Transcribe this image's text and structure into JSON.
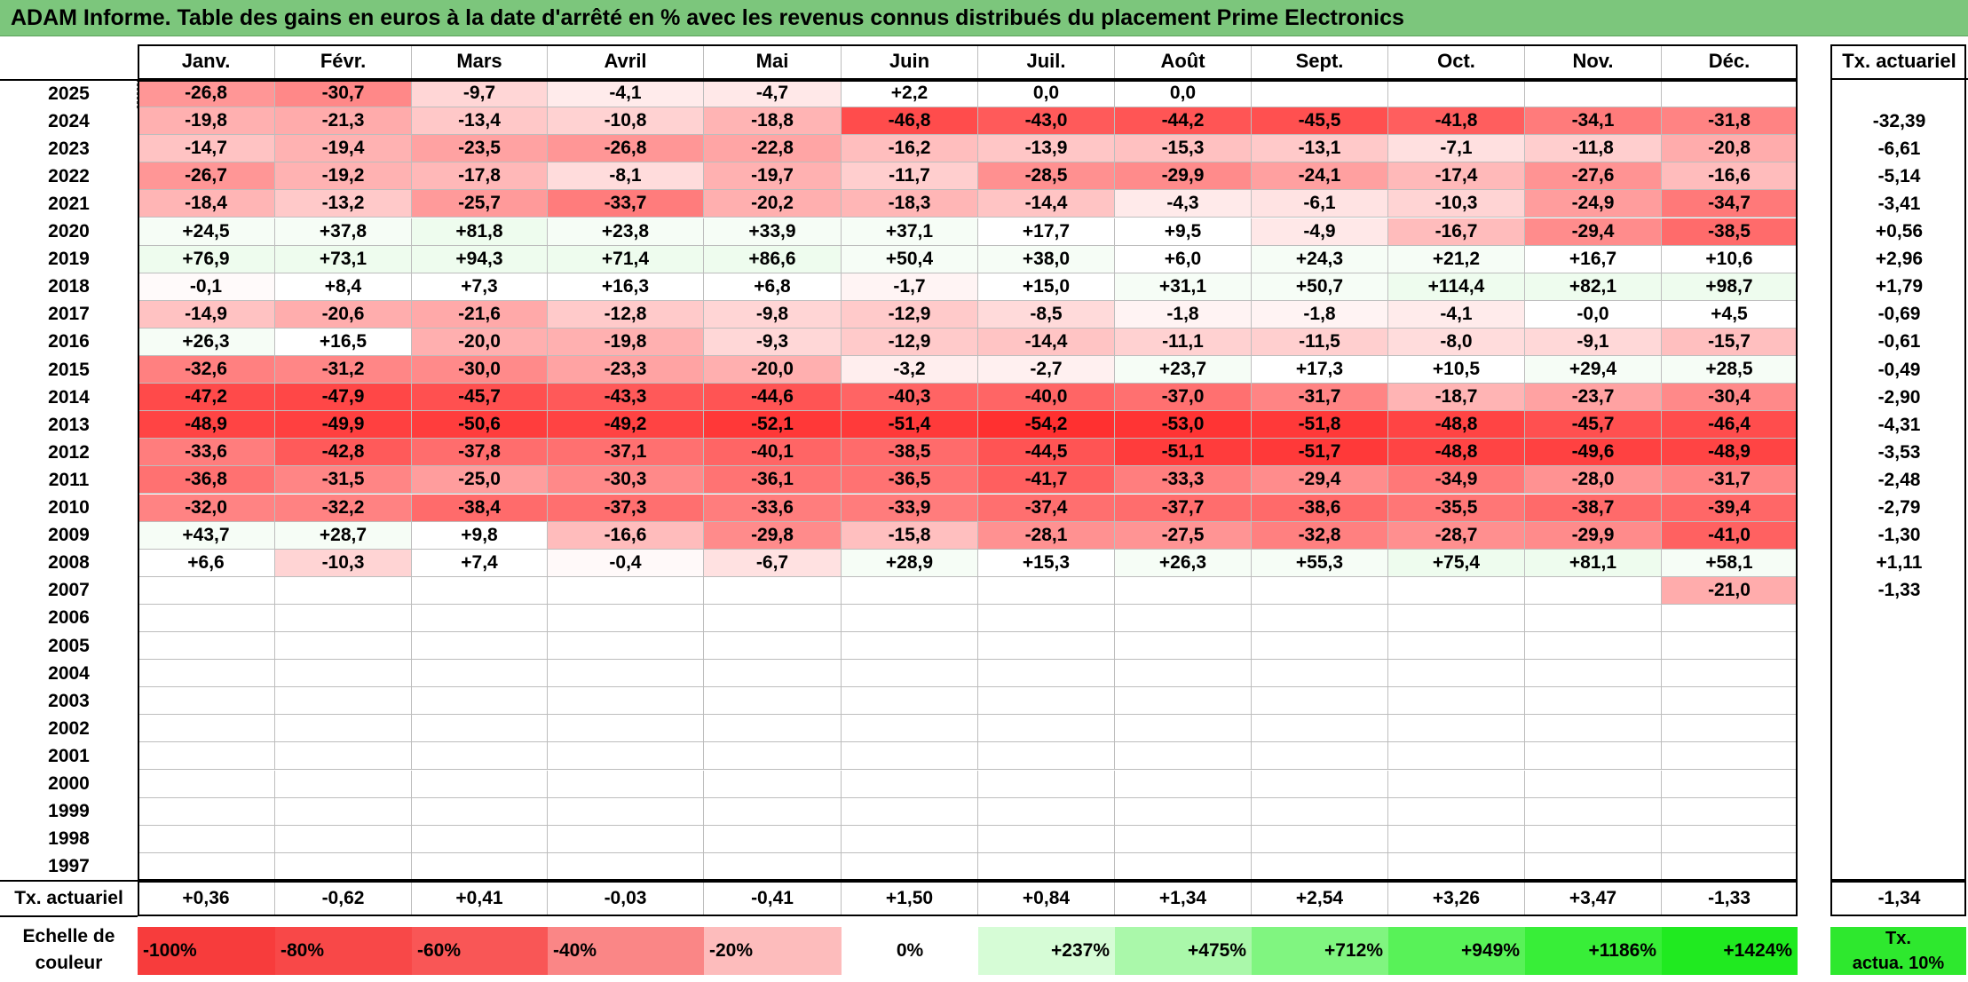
{
  "title": "ADAM Informe. Table des gains en euros à la date d'arrêté en % avec les revenus connus distribués du placement Prime Electronics",
  "months": [
    "Janv.",
    "Févr.",
    "Mars",
    "Avril",
    "Mai",
    "Juin",
    "Juil.",
    "Août",
    "Sept.",
    "Oct.",
    "Nov.",
    "Déc."
  ],
  "rate_header": "Tx. actuariel",
  "rows": [
    {
      "year": "2025",
      "values": [
        "-26,8",
        "-30,7",
        "-9,7",
        "-4,1",
        "-4,7",
        "+2,2",
        "0,0",
        "0,0",
        "",
        "",
        "",
        ""
      ],
      "rate": ""
    },
    {
      "year": "2024",
      "values": [
        "-19,8",
        "-21,3",
        "-13,4",
        "-10,8",
        "-18,8",
        "-46,8",
        "-43,0",
        "-44,2",
        "-45,5",
        "-41,8",
        "-34,1",
        "-31,8"
      ],
      "rate": "-32,39"
    },
    {
      "year": "2023",
      "values": [
        "-14,7",
        "-19,4",
        "-23,5",
        "-26,8",
        "-22,8",
        "-16,2",
        "-13,9",
        "-15,3",
        "-13,1",
        "-7,1",
        "-11,8",
        "-20,8"
      ],
      "rate": "-6,61"
    },
    {
      "year": "2022",
      "values": [
        "-26,7",
        "-19,2",
        "-17,8",
        "-8,1",
        "-19,7",
        "-11,7",
        "-28,5",
        "-29,9",
        "-24,1",
        "-17,4",
        "-27,6",
        "-16,6"
      ],
      "rate": "-5,14"
    },
    {
      "year": "2021",
      "values": [
        "-18,4",
        "-13,2",
        "-25,7",
        "-33,7",
        "-20,2",
        "-18,3",
        "-14,4",
        "-4,3",
        "-6,1",
        "-10,3",
        "-24,9",
        "-34,7"
      ],
      "rate": "-3,41"
    },
    {
      "year": "2020",
      "values": [
        "+24,5",
        "+37,8",
        "+81,8",
        "+23,8",
        "+33,9",
        "+37,1",
        "+17,7",
        "+9,5",
        "-4,9",
        "-16,7",
        "-29,4",
        "-38,5"
      ],
      "rate": "+0,56"
    },
    {
      "year": "2019",
      "values": [
        "+76,9",
        "+73,1",
        "+94,3",
        "+71,4",
        "+86,6",
        "+50,4",
        "+38,0",
        "+6,0",
        "+24,3",
        "+21,2",
        "+16,7",
        "+10,6"
      ],
      "rate": "+2,96"
    },
    {
      "year": "2018",
      "values": [
        "-0,1",
        "+8,4",
        "+7,3",
        "+16,3",
        "+6,8",
        "-1,7",
        "+15,0",
        "+31,1",
        "+50,7",
        "+114,4",
        "+82,1",
        "+98,7"
      ],
      "rate": "+1,79"
    },
    {
      "year": "2017",
      "values": [
        "-14,9",
        "-20,6",
        "-21,6",
        "-12,8",
        "-9,8",
        "-12,9",
        "-8,5",
        "-1,8",
        "-1,8",
        "-4,1",
        "-0,0",
        "+4,5"
      ],
      "rate": "-0,69"
    },
    {
      "year": "2016",
      "values": [
        "+26,3",
        "+16,5",
        "-20,0",
        "-19,8",
        "-9,3",
        "-12,9",
        "-14,4",
        "-11,1",
        "-11,5",
        "-8,0",
        "-9,1",
        "-15,7"
      ],
      "rate": "-0,61"
    },
    {
      "year": "2015",
      "values": [
        "-32,6",
        "-31,2",
        "-30,0",
        "-23,3",
        "-20,0",
        "-3,2",
        "-2,7",
        "+23,7",
        "+17,3",
        "+10,5",
        "+29,4",
        "+28,5"
      ],
      "rate": "-0,49"
    },
    {
      "year": "2014",
      "values": [
        "-47,2",
        "-47,9",
        "-45,7",
        "-43,3",
        "-44,6",
        "-40,3",
        "-40,0",
        "-37,0",
        "-31,7",
        "-18,7",
        "-23,7",
        "-30,4"
      ],
      "rate": "-2,90"
    },
    {
      "year": "2013",
      "values": [
        "-48,9",
        "-49,9",
        "-50,6",
        "-49,2",
        "-52,1",
        "-51,4",
        "-54,2",
        "-53,0",
        "-51,8",
        "-48,8",
        "-45,7",
        "-46,4"
      ],
      "rate": "-4,31"
    },
    {
      "year": "2012",
      "values": [
        "-33,6",
        "-42,8",
        "-37,8",
        "-37,1",
        "-40,1",
        "-38,5",
        "-44,5",
        "-51,1",
        "-51,7",
        "-48,8",
        "-49,6",
        "-48,9"
      ],
      "rate": "-3,53"
    },
    {
      "year": "2011",
      "values": [
        "-36,8",
        "-31,5",
        "-25,0",
        "-30,3",
        "-36,1",
        "-36,5",
        "-41,7",
        "-33,3",
        "-29,4",
        "-34,9",
        "-28,0",
        "-31,7"
      ],
      "rate": "-2,48"
    },
    {
      "year": "2010",
      "values": [
        "-32,0",
        "-32,2",
        "-38,4",
        "-37,3",
        "-33,6",
        "-33,9",
        "-37,4",
        "-37,7",
        "-38,6",
        "-35,5",
        "-38,7",
        "-39,4"
      ],
      "rate": "-2,79"
    },
    {
      "year": "2009",
      "values": [
        "+43,7",
        "+28,7",
        "+9,8",
        "-16,6",
        "-29,8",
        "-15,8",
        "-28,1",
        "-27,5",
        "-32,8",
        "-28,7",
        "-29,9",
        "-41,0"
      ],
      "rate": "-1,30"
    },
    {
      "year": "2008",
      "values": [
        "+6,6",
        "-10,3",
        "+7,4",
        "-0,4",
        "-6,7",
        "+28,9",
        "+15,3",
        "+26,3",
        "+55,3",
        "+75,4",
        "+81,1",
        "+58,1"
      ],
      "rate": "+1,11"
    },
    {
      "year": "2007",
      "values": [
        "",
        "",
        "",
        "",
        "",
        "",
        "",
        "",
        "",
        "",
        "",
        "-21,0"
      ],
      "rate": "-1,33"
    },
    {
      "year": "2006",
      "values": [
        "",
        "",
        "",
        "",
        "",
        "",
        "",
        "",
        "",
        "",
        "",
        ""
      ],
      "rate": ""
    },
    {
      "year": "2005",
      "values": [
        "",
        "",
        "",
        "",
        "",
        "",
        "",
        "",
        "",
        "",
        "",
        ""
      ],
      "rate": ""
    },
    {
      "year": "2004",
      "values": [
        "",
        "",
        "",
        "",
        "",
        "",
        "",
        "",
        "",
        "",
        "",
        ""
      ],
      "rate": ""
    },
    {
      "year": "2003",
      "values": [
        "",
        "",
        "",
        "",
        "",
        "",
        "",
        "",
        "",
        "",
        "",
        ""
      ],
      "rate": ""
    },
    {
      "year": "2002",
      "values": [
        "",
        "",
        "",
        "",
        "",
        "",
        "",
        "",
        "",
        "",
        "",
        ""
      ],
      "rate": ""
    },
    {
      "year": "2001",
      "values": [
        "",
        "",
        "",
        "",
        "",
        "",
        "",
        "",
        "",
        "",
        "",
        ""
      ],
      "rate": ""
    },
    {
      "year": "2000",
      "values": [
        "",
        "",
        "",
        "",
        "",
        "",
        "",
        "",
        "",
        "",
        "",
        ""
      ],
      "rate": ""
    },
    {
      "year": "1999",
      "values": [
        "",
        "",
        "",
        "",
        "",
        "",
        "",
        "",
        "",
        "",
        "",
        ""
      ],
      "rate": ""
    },
    {
      "year": "1998",
      "values": [
        "",
        "",
        "",
        "",
        "",
        "",
        "",
        "",
        "",
        "",
        "",
        ""
      ],
      "rate": ""
    },
    {
      "year": "1997",
      "values": [
        "",
        "",
        "",
        "",
        "",
        "",
        "",
        "",
        "",
        "",
        "",
        ""
      ],
      "rate": ""
    }
  ],
  "footer": {
    "label": "Tx. actuariel",
    "values": [
      "+0,36",
      "-0,62",
      "+0,41",
      "-0,03",
      "-0,41",
      "+1,50",
      "+0,84",
      "+1,34",
      "+2,54",
      "+3,26",
      "+3,47",
      "-1,33"
    ],
    "total": "-1,34"
  },
  "scale": {
    "label_line1": "Echelle de",
    "label_line2": "couleur",
    "items": [
      {
        "text": "-100%",
        "color": "#f73c3c"
      },
      {
        "text": "-80%",
        "color": "#f84848"
      },
      {
        "text": "-60%",
        "color": "#f95656"
      },
      {
        "text": "-40%",
        "color": "#fa8686"
      },
      {
        "text": "-20%",
        "color": "#fdbcbc"
      },
      {
        "text": "0%",
        "color": "#ffffff"
      },
      {
        "text": "+237%",
        "color": "#d6fcd6"
      },
      {
        "text": "+475%",
        "color": "#aaf8aa"
      },
      {
        "text": "+712%",
        "color": "#80f580"
      },
      {
        "text": "+949%",
        "color": "#58f258"
      },
      {
        "text": "+1186%",
        "color": "#38ee38"
      },
      {
        "text": "+1424%",
        "color": "#20ea20"
      }
    ],
    "last_line1": "Tx.",
    "last_line2": "actua. 10%",
    "last_color": "#2ee82e"
  },
  "colors": {
    "title_bg": "#7cc67c",
    "negative_max": "#ff2e2e",
    "positive_tint": "#eefcee"
  }
}
